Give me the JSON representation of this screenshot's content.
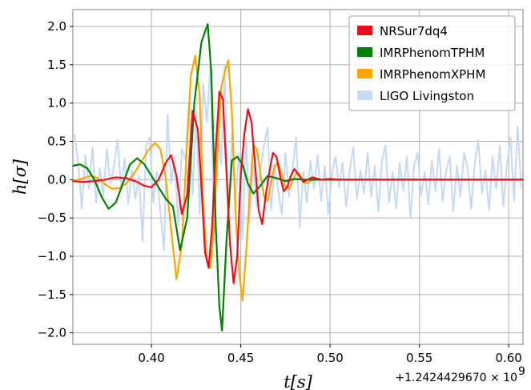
{
  "chart_data": {
    "type": "line",
    "title": "",
    "xlabel": "t[s]",
    "ylabel": "h[σ]",
    "x_offset_label": "+1.2424429670 × 10",
    "x_offset_exponent": "9",
    "xlim": [
      0.356,
      0.608
    ],
    "ylim": [
      -2.15,
      2.22
    ],
    "xticks": [
      0.4,
      0.45,
      0.5,
      0.55,
      0.6
    ],
    "xtick_labels": [
      "0.40",
      "0.45",
      "0.50",
      "0.55",
      "0.60"
    ],
    "yticks": [
      2.0,
      1.5,
      1.0,
      0.5,
      0.0,
      -0.5,
      -1.0,
      -1.5,
      -2.0
    ],
    "ytick_labels": [
      "2.0",
      "1.5",
      "1.0",
      "0.5",
      "0.0",
      "−0.5",
      "−1.0",
      "−1.5",
      "−2.0"
    ],
    "grid": true,
    "legend_position": "top-right",
    "series": [
      {
        "name": "LIGO Livingston",
        "color": "#c5d9f2",
        "x": [
          0.357,
          0.359,
          0.361,
          0.363,
          0.365,
          0.367,
          0.369,
          0.371,
          0.373,
          0.375,
          0.377,
          0.379,
          0.381,
          0.383,
          0.385,
          0.387,
          0.389,
          0.391,
          0.393,
          0.395,
          0.397,
          0.399,
          0.401,
          0.403,
          0.405,
          0.407,
          0.409,
          0.411,
          0.413,
          0.415,
          0.417,
          0.419,
          0.421,
          0.423,
          0.425,
          0.427,
          0.429,
          0.431,
          0.433,
          0.435,
          0.437,
          0.439,
          0.441,
          0.443,
          0.445,
          0.447,
          0.449,
          0.451,
          0.453,
          0.455,
          0.457,
          0.459,
          0.461,
          0.463,
          0.465,
          0.467,
          0.469,
          0.471,
          0.473,
          0.475,
          0.477,
          0.479,
          0.481,
          0.483,
          0.485,
          0.487,
          0.489,
          0.491,
          0.493,
          0.495,
          0.497,
          0.499,
          0.501,
          0.503,
          0.505,
          0.507,
          0.509,
          0.511,
          0.513,
          0.515,
          0.517,
          0.519,
          0.521,
          0.523,
          0.525,
          0.527,
          0.529,
          0.531,
          0.533,
          0.535,
          0.537,
          0.539,
          0.541,
          0.543,
          0.545,
          0.547,
          0.549,
          0.551,
          0.553,
          0.555,
          0.557,
          0.559,
          0.561,
          0.563,
          0.565,
          0.567,
          0.569,
          0.571,
          0.573,
          0.575,
          0.577,
          0.579,
          0.581,
          0.583,
          0.585,
          0.587,
          0.589,
          0.591,
          0.593,
          0.595,
          0.597,
          0.599,
          0.601,
          0.603,
          0.605,
          0.607
        ],
        "y": [
          0.58,
          0.21,
          -0.38,
          0.32,
          -0.12,
          0.42,
          -0.3,
          0.15,
          -0.22,
          0.4,
          -0.05,
          0.18,
          0.52,
          -0.1,
          0.28,
          -0.32,
          0.12,
          -0.25,
          0.05,
          -0.8,
          0.45,
          0.55,
          -0.3,
          0.1,
          -0.42,
          -0.92,
          0.85,
          -0.05,
          0.3,
          -0.6,
          0.4,
          0.25,
          1.0,
          -0.2,
          0.9,
          -0.45,
          1.25,
          0.75,
          1.52,
          -0.8,
          0.65,
          0.2,
          1.48,
          -0.6,
          0.6,
          -0.3,
          0.35,
          -0.78,
          0.55,
          -0.55,
          0.2,
          -0.35,
          0.12,
          0.45,
          0.68,
          -0.4,
          0.2,
          -0.15,
          -0.45,
          0.35,
          -0.22,
          0.15,
          0.55,
          -0.62,
          0.1,
          -0.3,
          0.25,
          -0.12,
          0.32,
          -0.28,
          0.18,
          -0.45,
          0.08,
          0.3,
          -0.1,
          0.22,
          -0.35,
          0.12,
          0.42,
          -0.25,
          0.12,
          -0.18,
          0.35,
          -0.22,
          0.18,
          -0.42,
          0.25,
          0.45,
          -0.3,
          0.1,
          -0.38,
          0.22,
          -0.15,
          0.3,
          -0.5,
          0.18,
          0.35,
          -0.2,
          0.1,
          -0.32,
          0.25,
          -0.15,
          0.4,
          -0.28,
          0.12,
          0.3,
          -0.42,
          0.18,
          -0.22,
          0.35,
          0.15,
          -0.38,
          0.22,
          0.52,
          -0.18,
          0.12,
          -0.4,
          0.3,
          -0.12,
          0.45,
          -0.35,
          0.2,
          0.55,
          -0.28,
          0.7,
          -0.1
        ]
      },
      {
        "name": "IMRPhenomXPHM",
        "color": "#ffa500",
        "x": [
          0.356,
          0.362,
          0.366,
          0.37,
          0.374,
          0.378,
          0.382,
          0.386,
          0.39,
          0.394,
          0.398,
          0.402,
          0.405,
          0.408,
          0.411,
          0.414,
          0.417,
          0.42,
          0.422,
          0.4245,
          0.427,
          0.429,
          0.431,
          0.433,
          0.435,
          0.437,
          0.439,
          0.441,
          0.443,
          0.445,
          0.447,
          0.449,
          0.451,
          0.453,
          0.455,
          0.457,
          0.459,
          0.461,
          0.463,
          0.465,
          0.467,
          0.469,
          0.471,
          0.473,
          0.475,
          0.477,
          0.479,
          0.481,
          0.483,
          0.485,
          0.487,
          0.489,
          0.491,
          0.495,
          0.5,
          0.505,
          0.51,
          0.52,
          0.608
        ],
        "y": [
          -0.02,
          0.02,
          0.05,
          0.02,
          -0.06,
          -0.12,
          -0.11,
          -0.05,
          0.07,
          0.22,
          0.38,
          0.48,
          0.4,
          0.02,
          -0.65,
          -1.3,
          -0.85,
          0.5,
          1.35,
          1.62,
          1.1,
          -0.35,
          -1.05,
          -1.15,
          -0.6,
          0.35,
          1.2,
          1.4,
          1.56,
          0.9,
          -0.4,
          -1.2,
          -1.58,
          -0.95,
          -0.2,
          0.45,
          0.4,
          0.08,
          -0.22,
          -0.28,
          -0.04,
          0.18,
          0.22,
          0.06,
          -0.1,
          -0.12,
          -0.02,
          0.08,
          0.07,
          -0.02,
          -0.05,
          -0.02,
          0.01,
          0.0,
          0.0,
          0.0,
          0.0,
          0.0,
          0.0
        ]
      },
      {
        "name": "IMRPhenomTPHM",
        "color": "#008000",
        "x": [
          0.356,
          0.36,
          0.364,
          0.368,
          0.372,
          0.376,
          0.38,
          0.384,
          0.388,
          0.392,
          0.396,
          0.4,
          0.404,
          0.408,
          0.412,
          0.416,
          0.42,
          0.424,
          0.428,
          0.4315,
          0.4335,
          0.436,
          0.438,
          0.4395,
          0.442,
          0.445,
          0.448,
          0.451,
          0.454,
          0.457,
          0.461,
          0.465,
          0.47,
          0.475,
          0.48,
          0.485,
          0.49,
          0.495,
          0.5,
          0.608
        ],
        "y": [
          0.18,
          0.2,
          0.15,
          0.0,
          -0.22,
          -0.38,
          -0.3,
          -0.05,
          0.2,
          0.28,
          0.2,
          0.05,
          -0.1,
          -0.25,
          -0.35,
          -0.92,
          -0.5,
          1.0,
          1.8,
          2.03,
          1.4,
          -0.6,
          -1.65,
          -1.97,
          -0.8,
          0.25,
          0.3,
          0.2,
          -0.05,
          -0.18,
          -0.08,
          0.05,
          0.02,
          -0.02,
          0.01,
          0.0,
          0.0,
          0.0,
          0.0,
          0.0
        ]
      },
      {
        "name": "NRSur7dq4",
        "color": "#e8101c",
        "x": [
          0.356,
          0.362,
          0.368,
          0.374,
          0.38,
          0.386,
          0.392,
          0.396,
          0.4,
          0.404,
          0.408,
          0.411,
          0.414,
          0.417,
          0.42,
          0.423,
          0.426,
          0.428,
          0.43,
          0.432,
          0.434,
          0.436,
          0.438,
          0.44,
          0.442,
          0.444,
          0.446,
          0.448,
          0.45,
          0.452,
          0.454,
          0.456,
          0.458,
          0.46,
          0.462,
          0.464,
          0.466,
          0.468,
          0.47,
          0.472,
          0.474,
          0.476,
          0.478,
          0.48,
          0.482,
          0.485,
          0.49,
          0.495,
          0.5,
          0.505,
          0.51,
          0.608
        ],
        "y": [
          -0.02,
          -0.03,
          -0.02,
          0.0,
          0.03,
          0.02,
          -0.03,
          -0.08,
          -0.1,
          0.0,
          0.22,
          0.32,
          0.05,
          -0.45,
          -0.2,
          0.9,
          0.65,
          -0.1,
          -0.95,
          -1.15,
          -0.6,
          0.4,
          1.15,
          1.05,
          0.1,
          -0.85,
          -1.35,
          -1.0,
          0.05,
          0.6,
          0.92,
          0.75,
          0.2,
          -0.4,
          -0.58,
          -0.2,
          0.1,
          0.35,
          0.3,
          0.05,
          -0.15,
          -0.1,
          0.05,
          0.14,
          0.08,
          -0.03,
          0.03,
          0.0,
          0.01,
          0.0,
          0.0,
          0.0
        ]
      }
    ],
    "legend_entries": [
      {
        "label": "NRSur7dq4",
        "color": "#e8101c"
      },
      {
        "label": "IMRPhenomTPHM",
        "color": "#008000"
      },
      {
        "label": "IMRPhenomXPHM",
        "color": "#ffa500"
      },
      {
        "label": "LIGO Livingston",
        "color": "#c5d9f2"
      }
    ]
  }
}
